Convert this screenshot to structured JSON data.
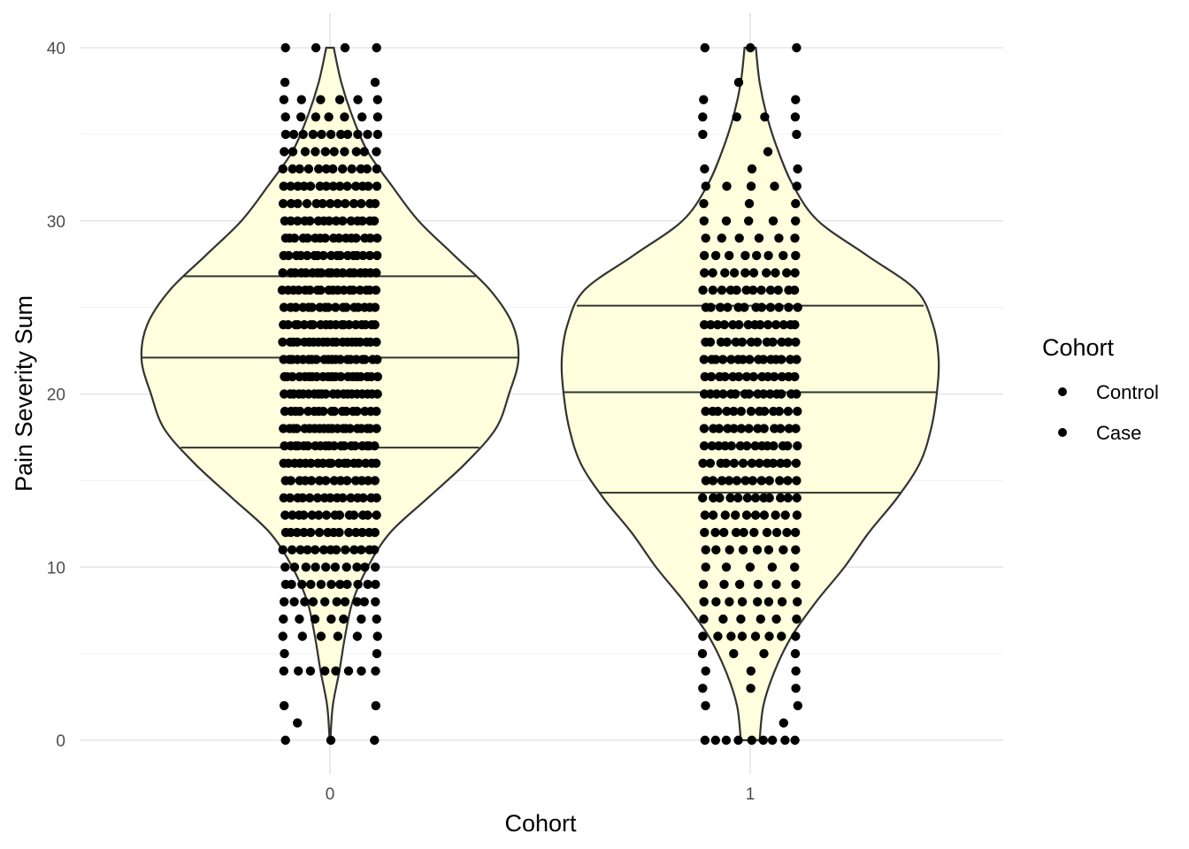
{
  "chart_data": {
    "type": "violin",
    "xlabel": "Cohort",
    "ylabel": "Pain Severity Sum",
    "categories": [
      "0",
      "1"
    ],
    "ylim": [
      0,
      40
    ],
    "y_ticks": [
      0,
      10,
      20,
      30,
      40
    ],
    "y_tick_labels": [
      "0",
      "10",
      "20",
      "30",
      "40"
    ],
    "grid": true,
    "violin_fill": "#FFFFDD",
    "violin_stroke": "#333333",
    "point_color": "#000000",
    "legend": {
      "title": "Cohort",
      "position": "right",
      "items": [
        {
          "label": "Control",
          "color": "#000000"
        },
        {
          "label": "Case",
          "color": "#000000"
        }
      ]
    },
    "series": [
      {
        "category": "0",
        "quantiles": {
          "q25": 16.9,
          "median": 22.1,
          "q75": 26.8
        },
        "density": [
          [
            0,
            0.002
          ],
          [
            2,
            0.015
          ],
          [
            4,
            0.05
          ],
          [
            6,
            0.08
          ],
          [
            8,
            0.12
          ],
          [
            10,
            0.2
          ],
          [
            12,
            0.32
          ],
          [
            14,
            0.52
          ],
          [
            16,
            0.72
          ],
          [
            18,
            0.88
          ],
          [
            20,
            0.95
          ],
          [
            22,
            1.0
          ],
          [
            24,
            0.97
          ],
          [
            26,
            0.85
          ],
          [
            28,
            0.66
          ],
          [
            30,
            0.47
          ],
          [
            32,
            0.33
          ],
          [
            34,
            0.2
          ],
          [
            36,
            0.12
          ],
          [
            38,
            0.06
          ],
          [
            40,
            0.02
          ]
        ],
        "points": [
          {
            "y": 0,
            "n": 3
          },
          {
            "y": 1,
            "n": 1
          },
          {
            "y": 2,
            "n": 2
          },
          {
            "y": 4,
            "n": 8
          },
          {
            "y": 5,
            "n": 2
          },
          {
            "y": 6,
            "n": 6
          },
          {
            "y": 7,
            "n": 7
          },
          {
            "y": 8,
            "n": 10
          },
          {
            "y": 9,
            "n": 11
          },
          {
            "y": 10,
            "n": 10
          },
          {
            "y": 11,
            "n": 13
          },
          {
            "y": 12,
            "n": 14
          },
          {
            "y": 13,
            "n": 14
          },
          {
            "y": 14,
            "n": 15
          },
          {
            "y": 15,
            "n": 14
          },
          {
            "y": 16,
            "n": 18
          },
          {
            "y": 17,
            "n": 19
          },
          {
            "y": 18,
            "n": 20
          },
          {
            "y": 19,
            "n": 17
          },
          {
            "y": 20,
            "n": 20
          },
          {
            "y": 21,
            "n": 20
          },
          {
            "y": 22,
            "n": 20
          },
          {
            "y": 23,
            "n": 20
          },
          {
            "y": 24,
            "n": 19
          },
          {
            "y": 25,
            "n": 17
          },
          {
            "y": 26,
            "n": 18
          },
          {
            "y": 27,
            "n": 18
          },
          {
            "y": 28,
            "n": 17
          },
          {
            "y": 29,
            "n": 16
          },
          {
            "y": 30,
            "n": 15
          },
          {
            "y": 31,
            "n": 13
          },
          {
            "y": 32,
            "n": 14
          },
          {
            "y": 33,
            "n": 12
          },
          {
            "y": 34,
            "n": 10
          },
          {
            "y": 35,
            "n": 11
          },
          {
            "y": 36,
            "n": 7
          },
          {
            "y": 37,
            "n": 6
          },
          {
            "y": 38,
            "n": 2
          },
          {
            "y": 40,
            "n": 4
          }
        ]
      },
      {
        "category": "1",
        "quantiles": {
          "q25": 14.3,
          "median": 20.1,
          "q75": 25.1
        },
        "density": [
          [
            0,
            0.05
          ],
          [
            2,
            0.07
          ],
          [
            4,
            0.13
          ],
          [
            6,
            0.22
          ],
          [
            8,
            0.35
          ],
          [
            10,
            0.5
          ],
          [
            12,
            0.63
          ],
          [
            14,
            0.78
          ],
          [
            16,
            0.9
          ],
          [
            18,
            0.96
          ],
          [
            20,
            0.99
          ],
          [
            22,
            1.0
          ],
          [
            24,
            0.97
          ],
          [
            26,
            0.88
          ],
          [
            28,
            0.62
          ],
          [
            30,
            0.36
          ],
          [
            32,
            0.23
          ],
          [
            34,
            0.15
          ],
          [
            36,
            0.09
          ],
          [
            38,
            0.05
          ],
          [
            40,
            0.03
          ]
        ],
        "points": [
          {
            "y": 0,
            "n": 9
          },
          {
            "y": 1,
            "n": 1
          },
          {
            "y": 2,
            "n": 2
          },
          {
            "y": 3,
            "n": 3
          },
          {
            "y": 4,
            "n": 3
          },
          {
            "y": 5,
            "n": 4
          },
          {
            "y": 6,
            "n": 8
          },
          {
            "y": 7,
            "n": 6
          },
          {
            "y": 8,
            "n": 8
          },
          {
            "y": 9,
            "n": 6
          },
          {
            "y": 10,
            "n": 5
          },
          {
            "y": 11,
            "n": 8
          },
          {
            "y": 12,
            "n": 10
          },
          {
            "y": 13,
            "n": 10
          },
          {
            "y": 14,
            "n": 12
          },
          {
            "y": 15,
            "n": 12
          },
          {
            "y": 16,
            "n": 13
          },
          {
            "y": 17,
            "n": 14
          },
          {
            "y": 18,
            "n": 13
          },
          {
            "y": 19,
            "n": 13
          },
          {
            "y": 20,
            "n": 15
          },
          {
            "y": 21,
            "n": 14
          },
          {
            "y": 22,
            "n": 15
          },
          {
            "y": 23,
            "n": 13
          },
          {
            "y": 24,
            "n": 14
          },
          {
            "y": 25,
            "n": 12
          },
          {
            "y": 26,
            "n": 12
          },
          {
            "y": 27,
            "n": 10
          },
          {
            "y": 28,
            "n": 8
          },
          {
            "y": 29,
            "n": 6
          },
          {
            "y": 30,
            "n": 5
          },
          {
            "y": 31,
            "n": 3
          },
          {
            "y": 32,
            "n": 5
          },
          {
            "y": 33,
            "n": 3
          },
          {
            "y": 34,
            "n": 1
          },
          {
            "y": 35,
            "n": 2
          },
          {
            "y": 36,
            "n": 4
          },
          {
            "y": 37,
            "n": 2
          },
          {
            "y": 38,
            "n": 1
          },
          {
            "y": 40,
            "n": 3
          }
        ]
      }
    ]
  }
}
